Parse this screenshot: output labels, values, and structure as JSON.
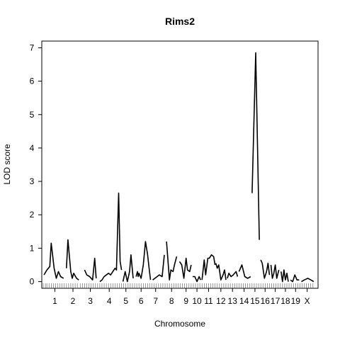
{
  "chart_data": {
    "type": "line",
    "title": "Rims2",
    "xlabel": "Chromosome",
    "ylabel": "LOD score",
    "ylim": [
      -0.2,
      7.2
    ],
    "yticks": [
      0,
      1,
      2,
      3,
      4,
      5,
      6,
      7
    ],
    "xlim": [
      0,
      21
    ],
    "chromosomes": [
      {
        "label": "1",
        "start": 0.15,
        "end": 1.65
      },
      {
        "label": "2",
        "start": 1.65,
        "end": 2.65
      },
      {
        "label": "3",
        "start": 2.65,
        "end": 4.05
      },
      {
        "label": "4",
        "start": 4.05,
        "end": 5.25
      },
      {
        "label": "5",
        "start": 5.25,
        "end": 6.35
      },
      {
        "label": "6",
        "start": 6.35,
        "end": 7.35
      },
      {
        "label": "7",
        "start": 7.35,
        "end": 8.35
      },
      {
        "label": "8",
        "start": 8.35,
        "end": 9.55
      },
      {
        "label": "9",
        "start": 9.55,
        "end": 10.35
      },
      {
        "label": "10",
        "start": 10.35,
        "end": 11.05
      },
      {
        "label": "11",
        "start": 11.05,
        "end": 11.95
      },
      {
        "label": "12",
        "start": 11.95,
        "end": 12.75
      },
      {
        "label": "13",
        "start": 12.75,
        "end": 13.55
      },
      {
        "label": "14",
        "start": 13.55,
        "end": 14.35
      },
      {
        "label": "15",
        "start": 14.35,
        "end": 15.05
      },
      {
        "label": "16",
        "start": 15.05,
        "end": 15.75
      },
      {
        "label": "17",
        "start": 15.75,
        "end": 16.45
      },
      {
        "label": "18",
        "start": 16.45,
        "end": 17.15
      },
      {
        "label": "19",
        "start": 17.15,
        "end": 17.85
      },
      {
        "label": "X",
        "start": 17.85,
        "end": 18.75
      }
    ],
    "series": [
      {
        "chromosome": "1",
        "x": [
          0.15,
          0.35,
          0.55,
          0.65,
          0.85,
          1.0,
          1.15,
          1.3,
          1.5
        ],
        "y": [
          0.2,
          0.35,
          0.45,
          1.15,
          0.4,
          0.1,
          0.3,
          0.15,
          0.1
        ]
      },
      {
        "chromosome": "2",
        "x": [
          1.7,
          1.8,
          2.0,
          2.1,
          2.2,
          2.4,
          2.55
        ],
        "y": [
          0.4,
          1.25,
          0.3,
          0.1,
          0.25,
          0.1,
          0.05
        ]
      },
      {
        "chromosome": "3",
        "x": [
          2.95,
          3.1,
          3.3,
          3.5,
          3.65,
          3.75
        ],
        "y": [
          0.35,
          0.2,
          0.15,
          0.05,
          0.7,
          0.1
        ]
      },
      {
        "chromosome": "4",
        "x": [
          4.0,
          4.15,
          4.3,
          4.6,
          4.75,
          4.9,
          5.05,
          5.15,
          5.3,
          5.4,
          5.5
        ],
        "y": [
          0.0,
          0.05,
          0.15,
          0.25,
          0.2,
          0.3,
          0.4,
          0.35,
          2.65,
          0.6,
          0.35
        ]
      },
      {
        "chromosome": "5",
        "x": [
          5.6,
          5.75,
          5.9,
          6.05,
          6.15,
          6.3
        ],
        "y": [
          0.0,
          0.3,
          0.0,
          0.3,
          0.8,
          0.1
        ]
      },
      {
        "chromosome": "6",
        "x": [
          6.5,
          6.6,
          6.65,
          6.7,
          6.85,
          7.0,
          7.15,
          7.3,
          7.4,
          7.5
        ],
        "y": [
          0.15,
          0.3,
          0.15,
          0.25,
          0.1,
          0.5,
          1.2,
          0.8,
          0.4,
          0.05
        ]
      },
      {
        "chromosome": "7",
        "x": [
          7.65,
          7.8,
          7.95,
          8.1,
          8.3,
          8.45
        ],
        "y": [
          0.05,
          0.1,
          0.15,
          0.2,
          0.15,
          0.8
        ]
      },
      {
        "chromosome": "8",
        "x": [
          8.6,
          8.8,
          8.9,
          9.05,
          9.15,
          9.3
        ],
        "y": [
          1.2,
          0.05,
          0.35,
          0.3,
          0.5,
          0.75
        ]
      },
      {
        "chromosome": "9",
        "x": [
          9.5,
          9.65,
          9.8,
          9.95,
          10.05,
          10.2,
          10.3
        ],
        "y": [
          0.6,
          0.5,
          0.1,
          0.7,
          0.35,
          0.3,
          0.5
        ]
      },
      {
        "chromosome": "10",
        "x": [
          10.4,
          10.55,
          10.7,
          10.85,
          10.95
        ],
        "y": [
          0.15,
          0.15,
          0.0,
          0.15,
          0.05
        ]
      },
      {
        "chromosome": "11",
        "x": [
          11.05,
          11.2,
          11.3,
          11.45,
          11.55,
          11.7,
          11.85,
          11.95
        ],
        "y": [
          0.05,
          0.65,
          0.2,
          0.7,
          0.7,
          0.8,
          0.75,
          0.5
        ]
      },
      {
        "chromosome": "12",
        "x": [
          12.0,
          12.1,
          12.2,
          12.35,
          12.5,
          12.6,
          12.7
        ],
        "y": [
          0.55,
          0.4,
          0.5,
          0.05,
          0.2,
          0.35,
          0.05
        ]
      },
      {
        "chromosome": "13",
        "x": [
          12.8,
          12.9,
          13.05,
          13.2,
          13.4,
          13.5
        ],
        "y": [
          0.1,
          0.25,
          0.15,
          0.2,
          0.3,
          0.15
        ]
      },
      {
        "chromosome": "14",
        "x": [
          13.6,
          13.8,
          14.0,
          14.2,
          14.4
        ],
        "y": [
          0.3,
          0.5,
          0.15,
          0.1,
          0.15
        ]
      },
      {
        "chromosome": "15",
        "x": [
          14.5,
          14.75,
          15.0
        ],
        "y": [
          2.65,
          6.85,
          1.25
        ]
      },
      {
        "chromosome": "16",
        "x": [
          15.1,
          15.2,
          15.35,
          15.5,
          15.6,
          15.7
        ],
        "y": [
          0.65,
          0.55,
          0.1,
          0.3,
          0.55,
          0.2
        ]
      },
      {
        "chromosome": "17",
        "x": [
          15.8,
          15.9,
          16.0,
          16.1,
          16.2,
          16.35
        ],
        "y": [
          0.5,
          0.1,
          0.25,
          0.5,
          0.1,
          0.35
        ]
      },
      {
        "chromosome": "18",
        "x": [
          16.5,
          16.6,
          16.7,
          16.8,
          16.9,
          17.0
        ],
        "y": [
          0.3,
          0.0,
          0.35,
          0.05,
          0.25,
          0.0
        ]
      },
      {
        "chromosome": "19",
        "x": [
          17.15,
          17.3,
          17.45,
          17.6,
          17.75
        ],
        "y": [
          0.05,
          0.0,
          0.2,
          0.05,
          0.05
        ]
      },
      {
        "chromosome": "X",
        "x": [
          17.9,
          18.1,
          18.35,
          18.55,
          18.75
        ],
        "y": [
          0.0,
          0.05,
          0.1,
          0.05,
          0.0
        ]
      }
    ],
    "markers": [
      0.1,
      0.25,
      0.35,
      0.5,
      0.65,
      0.8,
      0.95,
      1.1,
      1.25,
      1.4,
      1.55,
      1.7,
      1.85,
      2.0,
      2.15,
      2.3,
      2.45,
      2.65,
      2.8,
      2.95,
      3.1,
      3.25,
      3.4,
      3.55,
      3.7,
      3.85,
      4.0,
      4.15,
      4.3,
      4.45,
      4.6,
      4.75,
      4.9,
      5.05,
      5.2,
      5.35,
      5.5,
      5.65,
      5.8,
      5.95,
      6.1,
      6.25,
      6.4,
      6.55,
      6.7,
      6.85,
      7.0,
      7.15,
      7.3,
      7.45,
      7.6,
      7.75,
      7.9,
      8.05,
      8.2,
      8.35,
      8.5,
      8.65,
      8.8,
      8.95,
      9.1,
      9.25,
      9.4,
      9.55,
      9.7,
      9.85,
      10.0,
      10.15,
      10.3,
      10.45,
      10.6,
      10.75,
      10.9,
      11.05,
      11.2,
      11.35,
      11.5,
      11.65,
      11.8,
      11.95,
      12.1,
      12.25,
      12.4,
      12.55,
      12.7,
      12.85,
      13.0,
      13.15,
      13.3,
      13.45,
      13.6,
      13.75,
      13.9,
      14.05,
      14.2,
      14.35,
      14.5,
      14.65,
      14.8,
      14.95,
      15.1,
      15.25,
      15.4,
      15.55,
      15.7,
      15.85,
      16.0,
      16.15,
      16.3,
      16.45,
      16.6,
      16.75,
      16.9,
      17.05,
      17.2,
      17.35,
      17.5,
      17.65,
      17.8,
      17.95,
      18.1,
      18.25,
      18.4,
      18.55,
      18.7
    ]
  }
}
